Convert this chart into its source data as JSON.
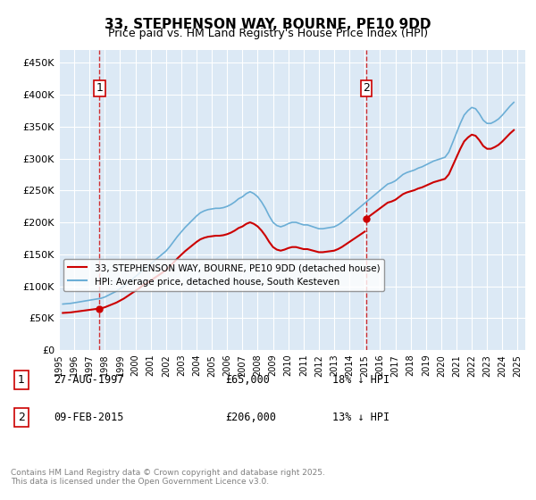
{
  "title": "33, STEPHENSON WAY, BOURNE, PE10 9DD",
  "subtitle": "Price paid vs. HM Land Registry's House Price Index (HPI)",
  "background_color": "#dce9f5",
  "plot_bg_color": "#dce9f5",
  "ylim": [
    0,
    470000
  ],
  "yticks": [
    0,
    50000,
    100000,
    150000,
    200000,
    250000,
    300000,
    350000,
    400000,
    450000
  ],
  "ytick_labels": [
    "£0",
    "£50K",
    "£100K",
    "£150K",
    "£200K",
    "£250K",
    "£300K",
    "£350K",
    "£400K",
    "£450K"
  ],
  "xlim_start": 1995.0,
  "xlim_end": 2025.5,
  "xticks": [
    1995,
    1996,
    1997,
    1998,
    1999,
    2000,
    2001,
    2002,
    2003,
    2004,
    2005,
    2006,
    2007,
    2008,
    2009,
    2010,
    2011,
    2012,
    2013,
    2014,
    2015,
    2016,
    2017,
    2018,
    2019,
    2020,
    2021,
    2022,
    2023,
    2024,
    2025
  ],
  "purchase1_x": 1997.65,
  "purchase1_y": 65000,
  "purchase1_label": "1",
  "purchase2_x": 2015.1,
  "purchase2_y": 206000,
  "purchase2_label": "2",
  "line1_color": "#cc0000",
  "line2_color": "#6baed6",
  "vline_color": "#cc0000",
  "legend_line1": "33, STEPHENSON WAY, BOURNE, PE10 9DD (detached house)",
  "legend_line2": "HPI: Average price, detached house, South Kesteven",
  "annotation1": "1    27-AUG-1997           £65,000         18% ↓ HPI",
  "annotation2": "2    09-FEB-2015           £206,000       13% ↓ HPI",
  "footer": "Contains HM Land Registry data © Crown copyright and database right 2025.\nThis data is licensed under the Open Government Licence v3.0.",
  "hpi_data": {
    "years": [
      1995.25,
      1995.5,
      1995.75,
      1996.0,
      1996.25,
      1996.5,
      1996.75,
      1997.0,
      1997.25,
      1997.5,
      1997.75,
      1998.0,
      1998.25,
      1998.5,
      1998.75,
      1999.0,
      1999.25,
      1999.5,
      1999.75,
      2000.0,
      2000.25,
      2000.5,
      2000.75,
      2001.0,
      2001.25,
      2001.5,
      2001.75,
      2002.0,
      2002.25,
      2002.5,
      2002.75,
      2003.0,
      2003.25,
      2003.5,
      2003.75,
      2004.0,
      2004.25,
      2004.5,
      2004.75,
      2005.0,
      2005.25,
      2005.5,
      2005.75,
      2006.0,
      2006.25,
      2006.5,
      2006.75,
      2007.0,
      2007.25,
      2007.5,
      2007.75,
      2008.0,
      2008.25,
      2008.5,
      2008.75,
      2009.0,
      2009.25,
      2009.5,
      2009.75,
      2010.0,
      2010.25,
      2010.5,
      2010.75,
      2011.0,
      2011.25,
      2011.5,
      2011.75,
      2012.0,
      2012.25,
      2012.5,
      2012.75,
      2013.0,
      2013.25,
      2013.5,
      2013.75,
      2014.0,
      2014.25,
      2014.5,
      2014.75,
      2015.0,
      2015.25,
      2015.5,
      2015.75,
      2016.0,
      2016.25,
      2016.5,
      2016.75,
      2017.0,
      2017.25,
      2017.5,
      2017.75,
      2018.0,
      2018.25,
      2018.5,
      2018.75,
      2019.0,
      2019.25,
      2019.5,
      2019.75,
      2020.0,
      2020.25,
      2020.5,
      2020.75,
      2021.0,
      2021.25,
      2021.5,
      2021.75,
      2022.0,
      2022.25,
      2022.5,
      2022.75,
      2023.0,
      2023.25,
      2023.5,
      2023.75,
      2024.0,
      2024.25,
      2024.5,
      2024.75
    ],
    "values": [
      72000,
      72500,
      73000,
      74000,
      75000,
      76000,
      77000,
      78000,
      79000,
      80000,
      81000,
      83000,
      86000,
      89000,
      92000,
      96000,
      100000,
      105000,
      110000,
      115000,
      120000,
      126000,
      130000,
      135000,
      140000,
      145000,
      150000,
      155000,
      162000,
      170000,
      178000,
      185000,
      192000,
      198000,
      204000,
      210000,
      215000,
      218000,
      220000,
      221000,
      222000,
      222000,
      223000,
      225000,
      228000,
      232000,
      237000,
      240000,
      245000,
      248000,
      245000,
      240000,
      232000,
      222000,
      210000,
      200000,
      195000,
      193000,
      195000,
      198000,
      200000,
      200000,
      198000,
      196000,
      196000,
      194000,
      192000,
      190000,
      190000,
      191000,
      192000,
      193000,
      196000,
      200000,
      205000,
      210000,
      215000,
      220000,
      225000,
      230000,
      235000,
      240000,
      245000,
      250000,
      255000,
      260000,
      262000,
      265000,
      270000,
      275000,
      278000,
      280000,
      282000,
      285000,
      287000,
      290000,
      293000,
      296000,
      298000,
      300000,
      302000,
      310000,
      325000,
      340000,
      355000,
      368000,
      375000,
      380000,
      378000,
      370000,
      360000,
      355000,
      355000,
      358000,
      362000,
      368000,
      375000,
      382000,
      388000
    ]
  },
  "house_data": {
    "years": [
      1997.65,
      2015.1
    ],
    "values": [
      65000,
      206000
    ]
  }
}
